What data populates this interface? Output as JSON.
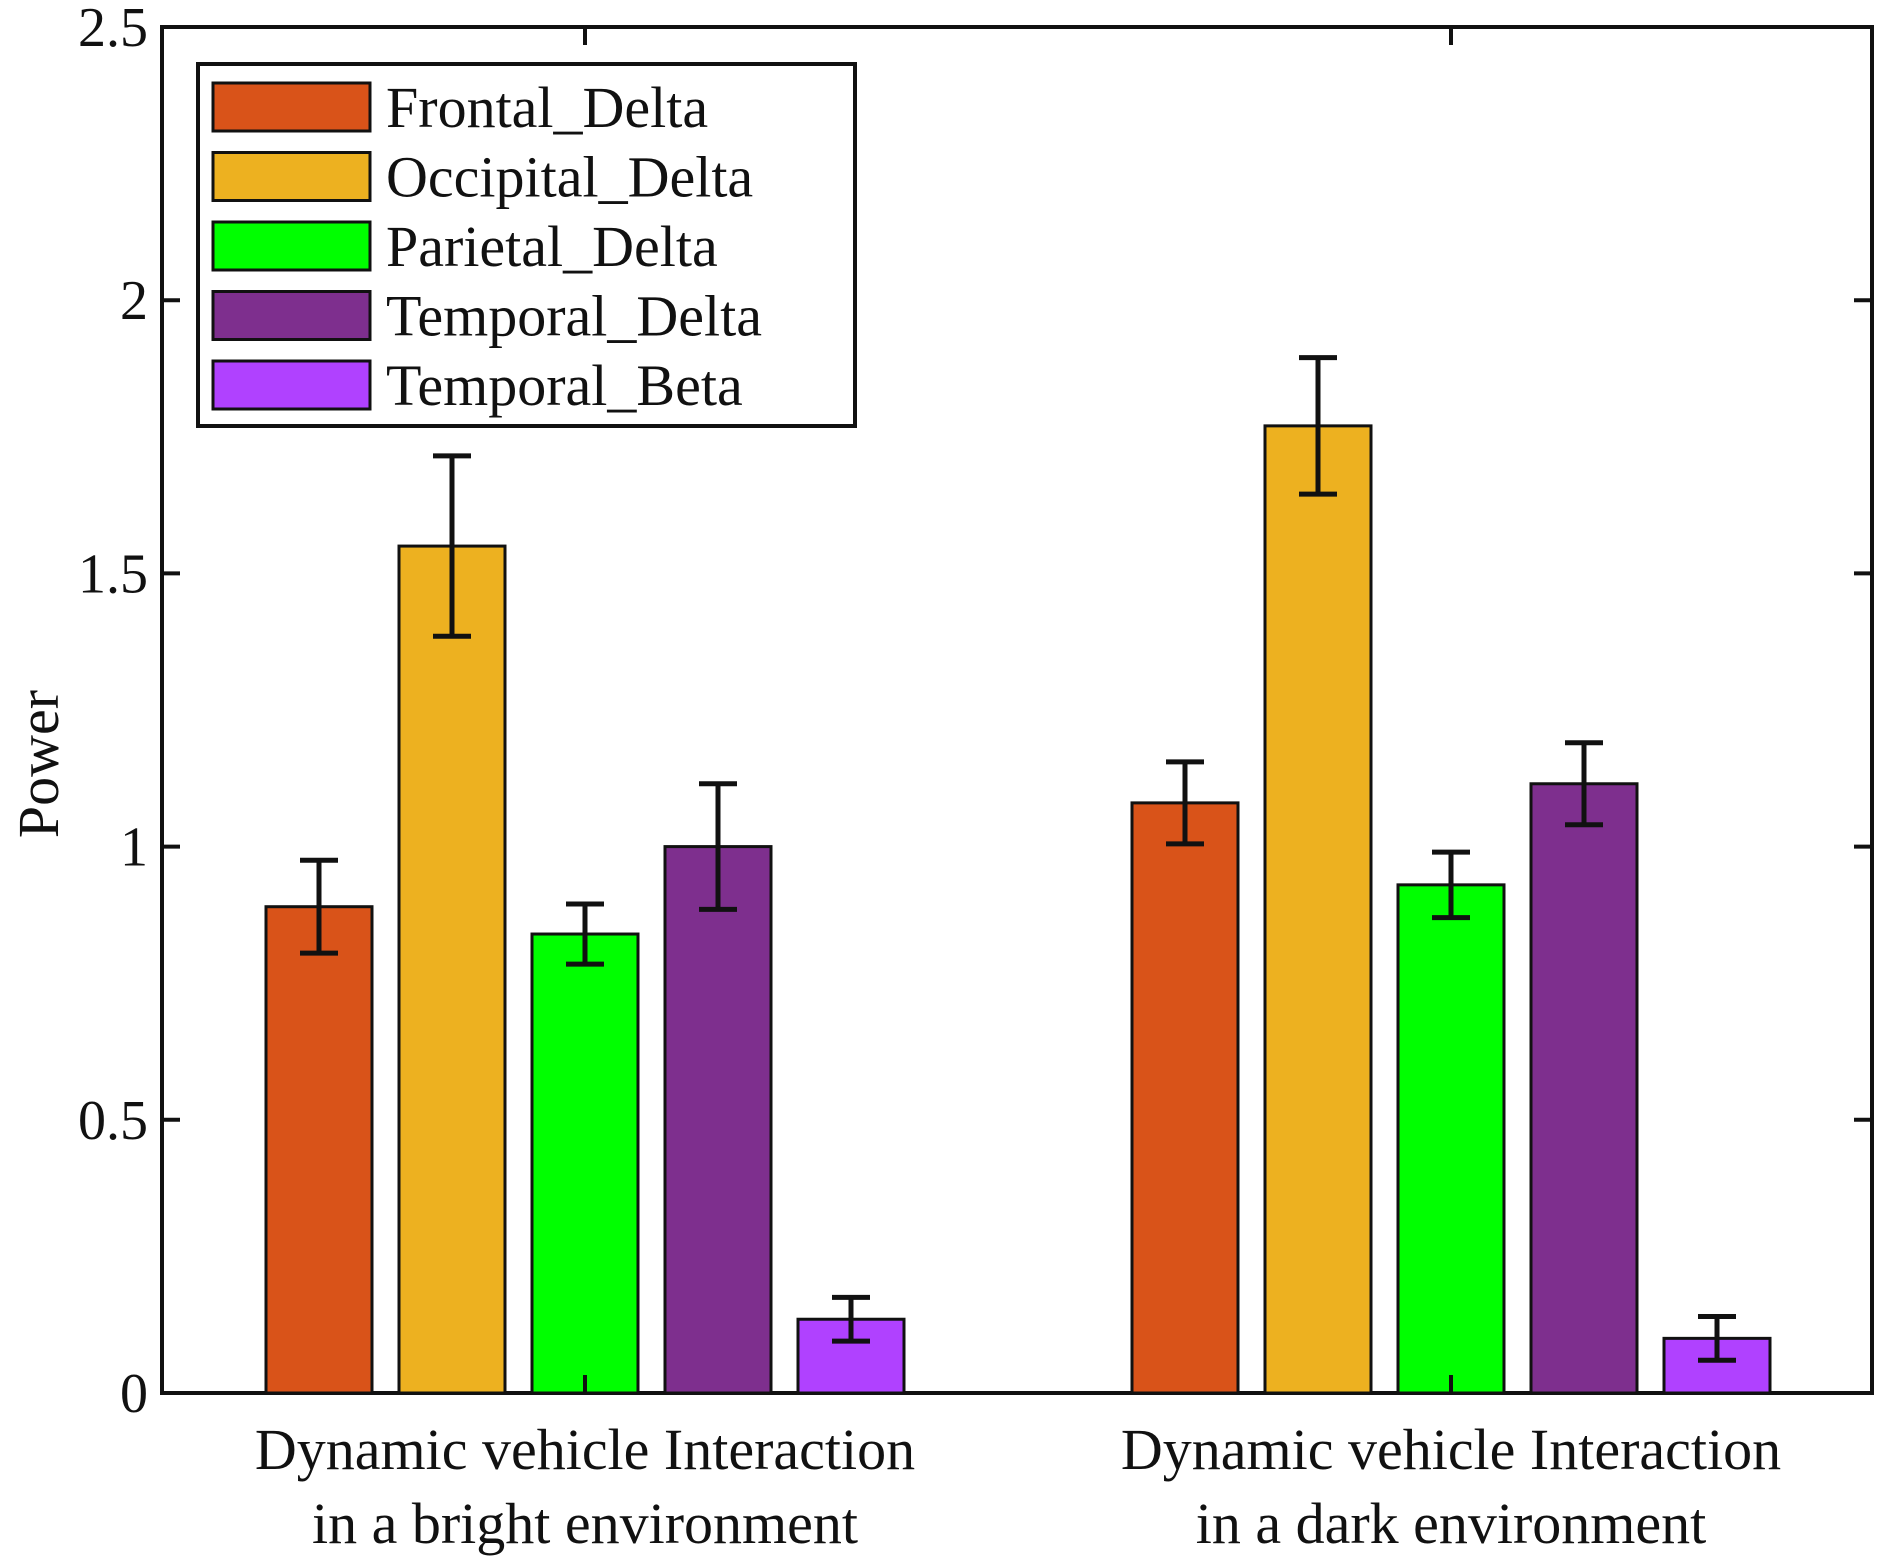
{
  "chart_data": {
    "type": "bar",
    "title": "",
    "xlabel": "",
    "ylabel": "Power",
    "ylim": [
      0,
      2.5
    ],
    "yticks": [
      "0",
      "0.5",
      "1",
      "1.5",
      "2",
      "2.5"
    ],
    "yticks_values": [
      0,
      0.5,
      1,
      1.5,
      2,
      2.5
    ],
    "grid": false,
    "legend_position": "top-left",
    "categories": [
      [
        "Dynamic vehicle Interaction",
        "in a bright environment"
      ],
      [
        "Dynamic vehicle Interaction",
        "in a dark environment"
      ]
    ],
    "series": [
      {
        "name": "Frontal_Delta",
        "color": "#D95319",
        "values": [
          0.89,
          1.08
        ],
        "errors": [
          0.085,
          0.075
        ]
      },
      {
        "name": "Occipital_Delta",
        "color": "#EDB120",
        "values": [
          1.55,
          1.77
        ],
        "errors": [
          0.165,
          0.125
        ]
      },
      {
        "name": "Parietal_Delta",
        "color": "#00FF00",
        "values": [
          0.84,
          0.93
        ],
        "errors": [
          0.055,
          0.06
        ]
      },
      {
        "name": "Temporal_Delta",
        "color": "#7E2F8E",
        "values": [
          1.0,
          1.115
        ],
        "errors": [
          0.115,
          0.075
        ]
      },
      {
        "name": "Temporal_Beta",
        "color": "#B041FF",
        "values": [
          0.135,
          0.1
        ],
        "errors": [
          0.04,
          0.04
        ]
      }
    ]
  }
}
